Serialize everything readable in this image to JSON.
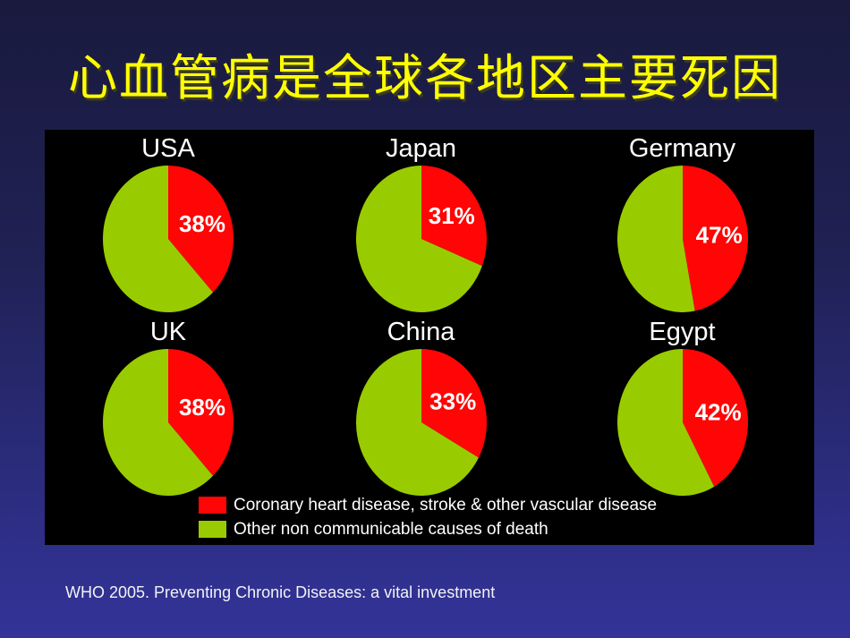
{
  "slide": {
    "title": "心血管病是全球各地区主要死因",
    "source": "WHO 2005. Preventing Chronic Diseases: a vital investment"
  },
  "colors": {
    "background_top": "#191A3E",
    "background_bottom": "#333399",
    "title_text": "#FFFF00",
    "panel_background": "#000000",
    "cvd_red": "#FF0505",
    "other_green": "#99CC00",
    "label_text": "#FFFFFF"
  },
  "chart_data": {
    "type": "pie",
    "title": "心血管病是全球各地区主要死因",
    "layout": "2 rows x 3 columns of pies on black panel",
    "start_angle_deg": -90,
    "direction": "clockwise",
    "slice_labels": [
      "Coronary heart disease, stroke & other vascular disease",
      "Other non communicable causes of death"
    ],
    "slice_colors": [
      "#FF0505",
      "#99CC00"
    ],
    "legend_position": "bottom",
    "series": [
      {
        "name": "USA",
        "values": [
          38,
          62
        ],
        "label": "38%"
      },
      {
        "name": "Japan",
        "values": [
          31,
          69
        ],
        "label": "31%"
      },
      {
        "name": "Germany",
        "values": [
          47,
          53
        ],
        "label": "47%"
      },
      {
        "name": "UK",
        "values": [
          38,
          62
        ],
        "label": "38%"
      },
      {
        "name": "China",
        "values": [
          33,
          67
        ],
        "label": "33%"
      },
      {
        "name": "Egypt",
        "values": [
          42,
          58
        ],
        "label": "42%"
      }
    ]
  }
}
